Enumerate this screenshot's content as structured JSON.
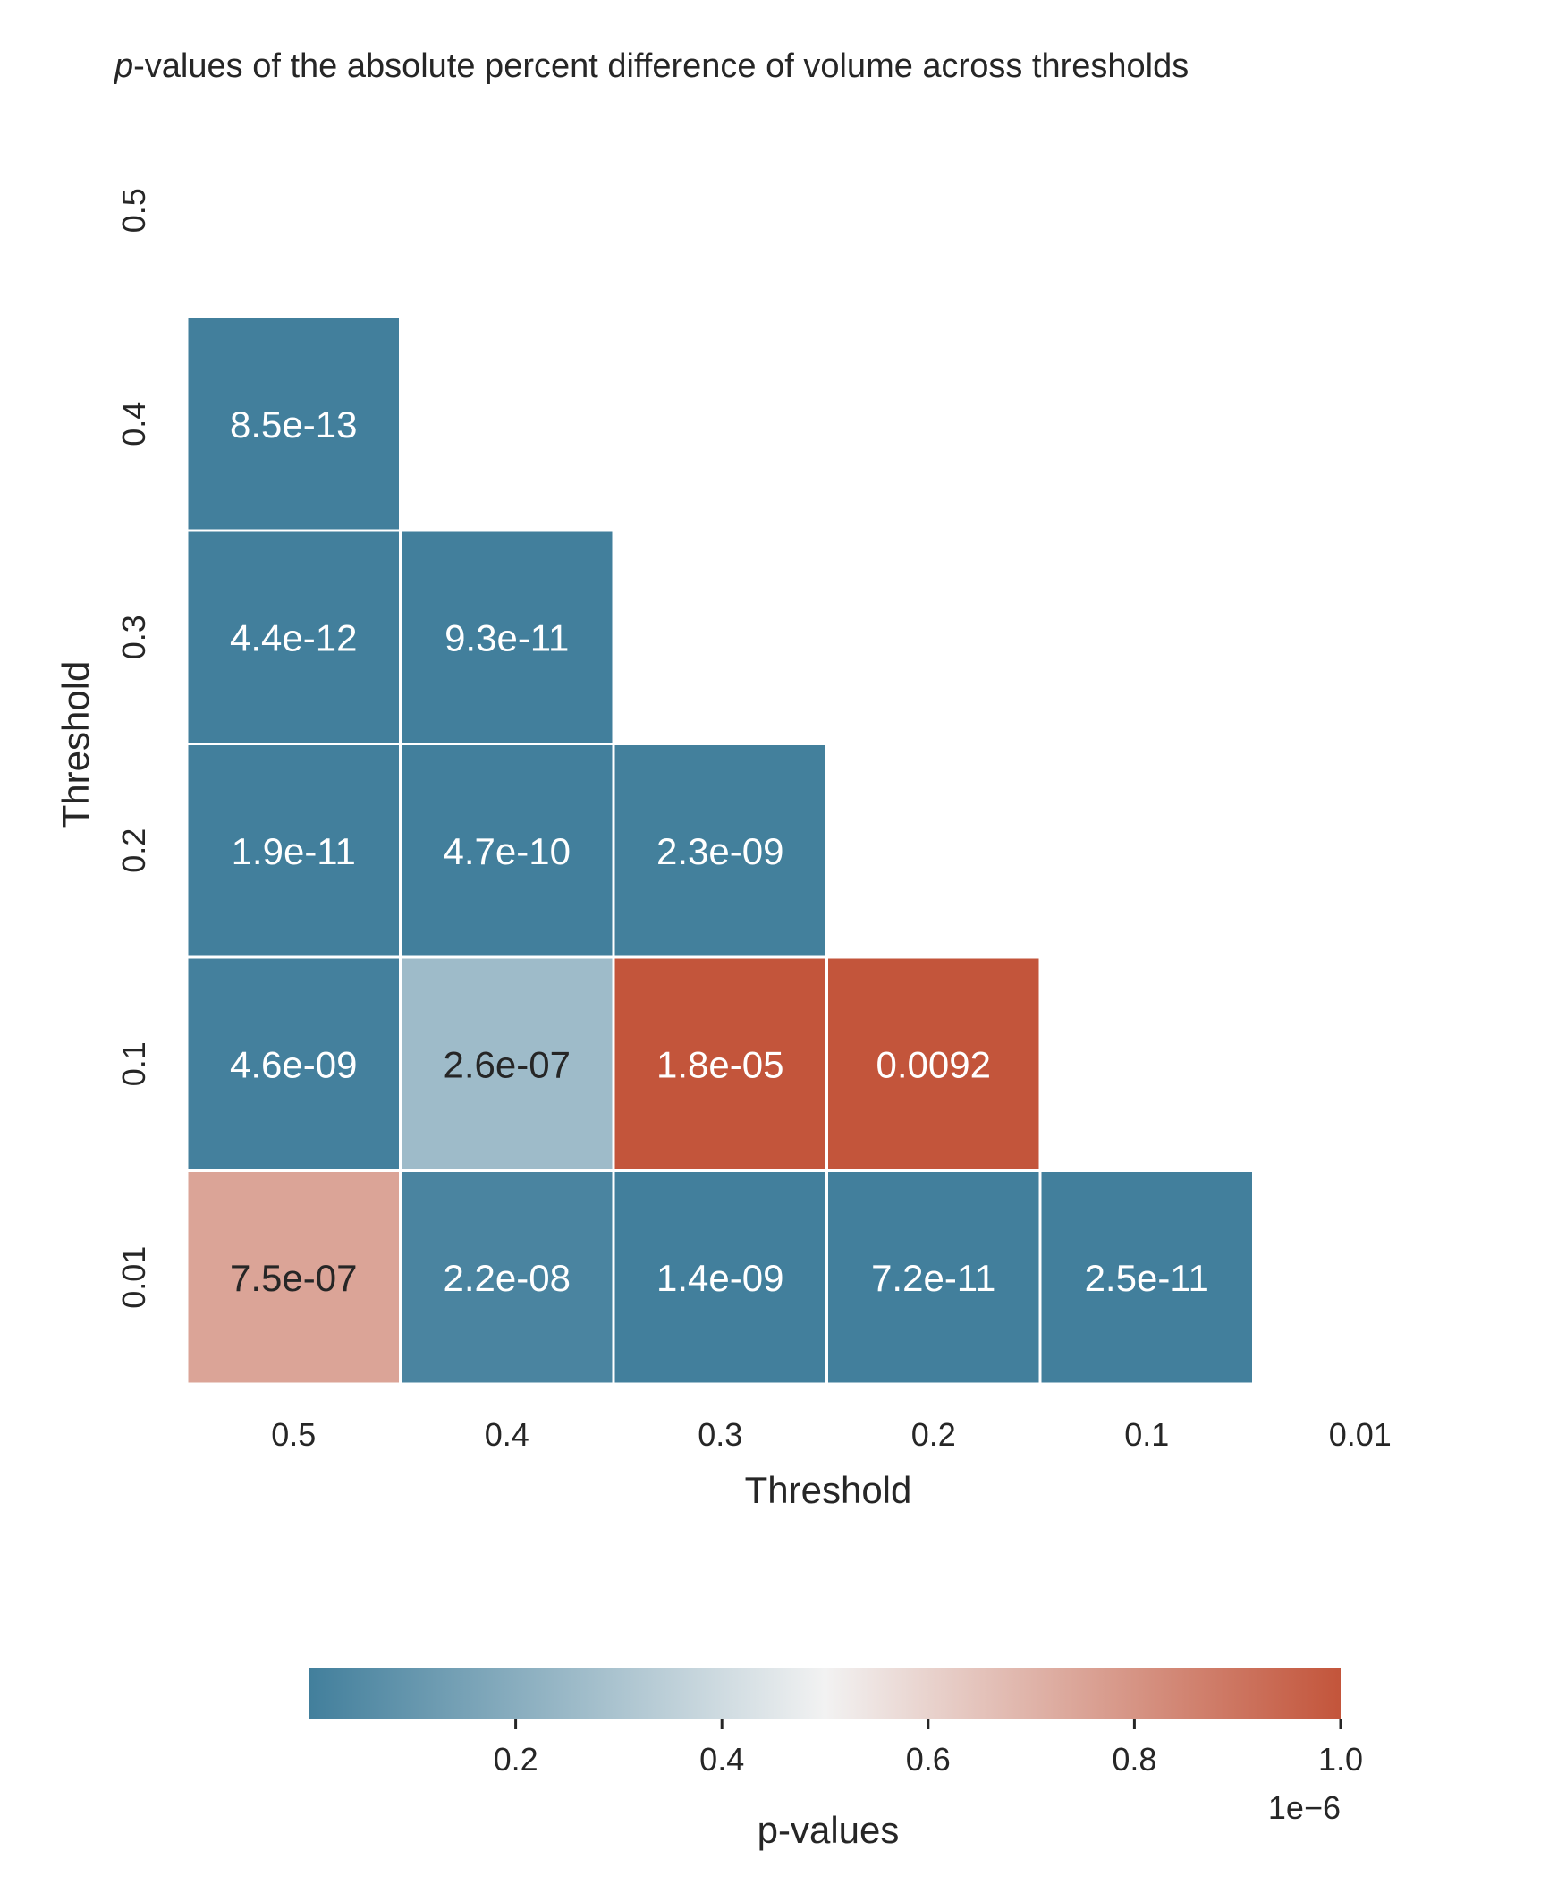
{
  "chart_data": {
    "type": "heatmap",
    "title_italic": "p",
    "title_rest": "-values of the absolute percent difference of volume across thresholds",
    "xlabel": "Threshold",
    "ylabel": "Threshold",
    "x_tick_labels": [
      "0.5",
      "0.4",
      "0.3",
      "0.2",
      "0.1",
      "0.01"
    ],
    "y_tick_labels": [
      "0.5",
      "0.4",
      "0.3",
      "0.2",
      "0.1",
      "0.01"
    ],
    "mask": "upper-triangle-including-diagonal",
    "cells": [
      {
        "row": 1,
        "col": 0,
        "value": 8.5e-13,
        "label": "8.5e-13"
      },
      {
        "row": 2,
        "col": 0,
        "value": 4.4e-12,
        "label": "4.4e-12"
      },
      {
        "row": 2,
        "col": 1,
        "value": 9.3e-11,
        "label": "9.3e-11"
      },
      {
        "row": 3,
        "col": 0,
        "value": 1.9e-11,
        "label": "1.9e-11"
      },
      {
        "row": 3,
        "col": 1,
        "value": 4.7e-10,
        "label": "4.7e-10"
      },
      {
        "row": 3,
        "col": 2,
        "value": 2.3e-09,
        "label": "2.3e-09"
      },
      {
        "row": 4,
        "col": 0,
        "value": 4.6e-09,
        "label": "4.6e-09"
      },
      {
        "row": 4,
        "col": 1,
        "value": 2.6e-07,
        "label": "2.6e-07"
      },
      {
        "row": 4,
        "col": 2,
        "value": 1.8e-05,
        "label": "1.8e-05"
      },
      {
        "row": 4,
        "col": 3,
        "value": 0.0092,
        "label": "0.0092"
      },
      {
        "row": 5,
        "col": 0,
        "value": 7.5e-07,
        "label": "7.5e-07"
      },
      {
        "row": 5,
        "col": 1,
        "value": 2.2e-08,
        "label": "2.2e-08"
      },
      {
        "row": 5,
        "col": 2,
        "value": 1.4e-09,
        "label": "1.4e-09"
      },
      {
        "row": 5,
        "col": 3,
        "value": 7.2e-11,
        "label": "7.2e-11"
      },
      {
        "row": 5,
        "col": 4,
        "value": 2.5e-11,
        "label": "2.5e-11"
      }
    ],
    "colorbar": {
      "label": "p-values",
      "vmin": 0,
      "vmax": 1e-06,
      "ticks": [
        0.2,
        0.4,
        0.6,
        0.8,
        1.0
      ],
      "tick_labels": [
        "0.2",
        "0.4",
        "0.6",
        "0.8",
        "1.0"
      ],
      "multiplier_label": "1e−6",
      "orientation": "horizontal",
      "placement": "bottom"
    },
    "colors": {
      "low": "#427f9c",
      "mid": "#f2f2f2",
      "high": "#c3553b",
      "text_dark": "#262626",
      "text_light": "#ffffff",
      "cell_border": "#ffffff"
    }
  }
}
